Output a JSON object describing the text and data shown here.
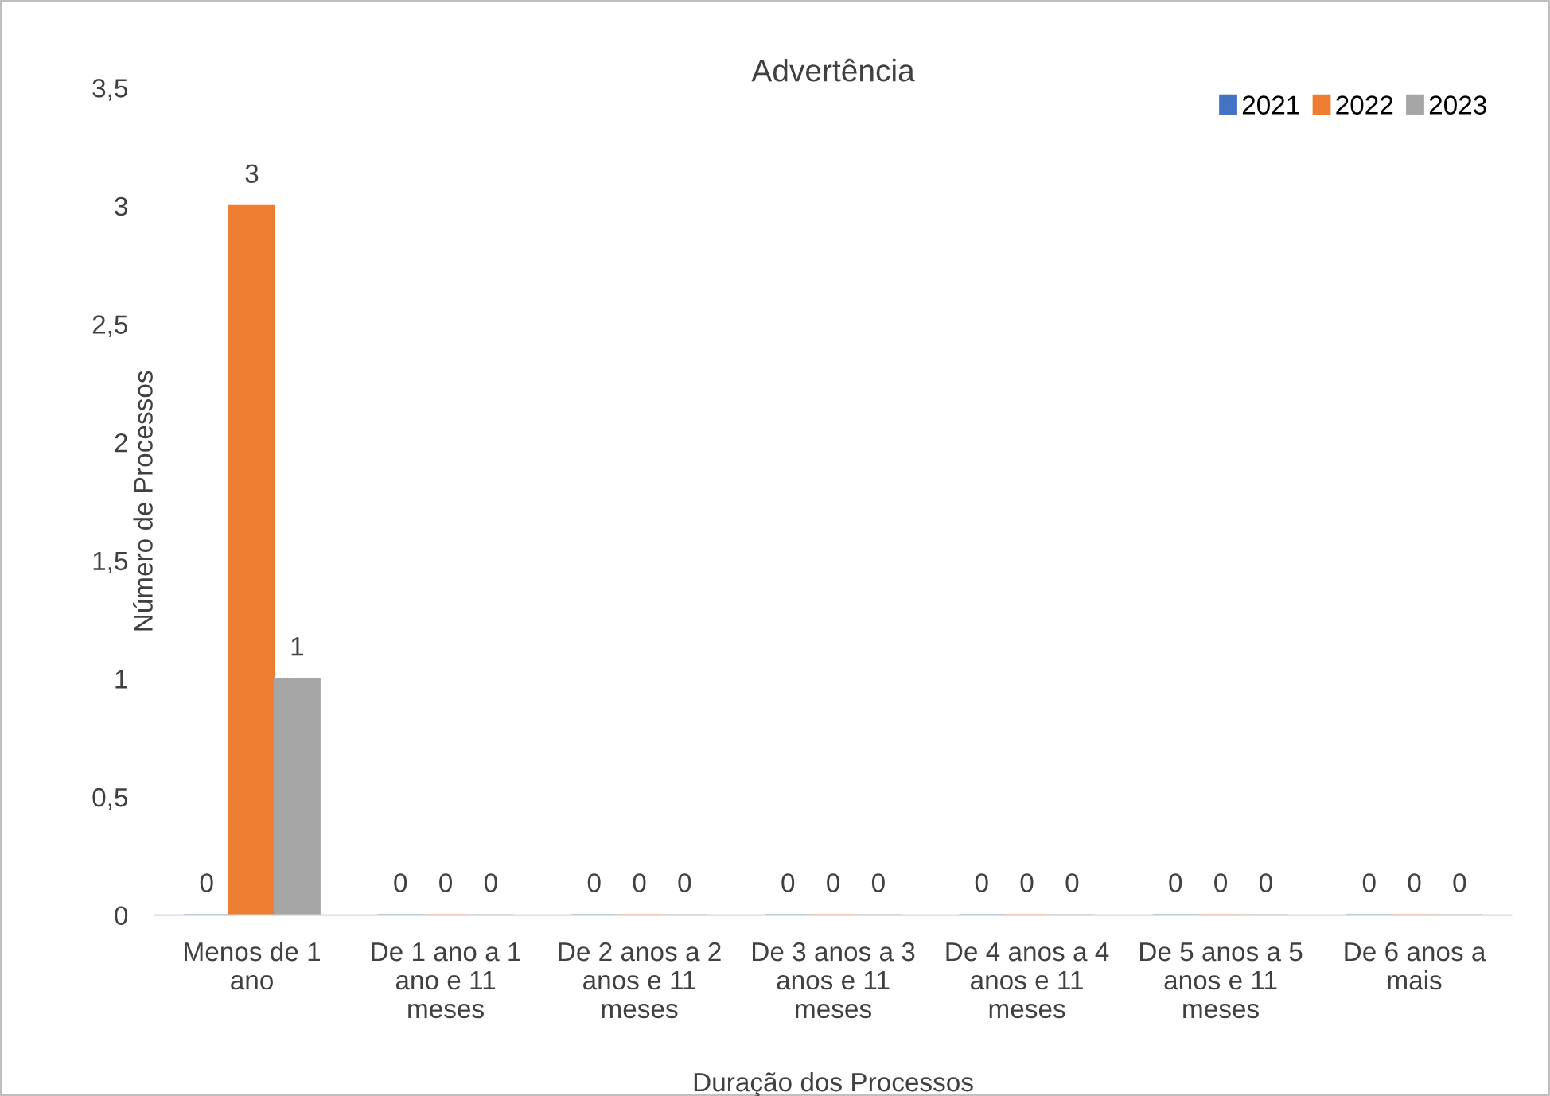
{
  "chart_data": {
    "type": "bar",
    "title": "Advertência",
    "xlabel": "Duração dos Processos",
    "ylabel": "Número de Processos",
    "categories": [
      "Menos de 1 ano",
      "De 1 ano a 1 ano e 11 meses",
      "De 2 anos a 2 anos e 11 meses",
      "De 3 anos a 3 anos e 11 meses",
      "De 4 anos a 4 anos e 11 meses",
      "De 5 anos a 5 anos e 11 meses",
      "De 6 anos a mais"
    ],
    "series": [
      {
        "name": "2021",
        "color": "#4472c4",
        "values": [
          0,
          0,
          0,
          0,
          0,
          0,
          0
        ]
      },
      {
        "name": "2022",
        "color": "#ed7d31",
        "values": [
          3,
          0,
          0,
          0,
          0,
          0,
          0
        ]
      },
      {
        "name": "2023",
        "color": "#a5a5a5",
        "values": [
          1,
          0,
          0,
          0,
          0,
          0,
          0
        ]
      }
    ],
    "ylim": [
      0,
      3.5
    ],
    "yticks": [
      {
        "value": 0,
        "label": "0"
      },
      {
        "value": 0.5,
        "label": "0,5"
      },
      {
        "value": 1,
        "label": "1"
      },
      {
        "value": 1.5,
        "label": "1,5"
      },
      {
        "value": 2,
        "label": "2"
      },
      {
        "value": 2.5,
        "label": "2,5"
      },
      {
        "value": 3,
        "label": "3"
      },
      {
        "value": 3.5,
        "label": "3,5"
      }
    ],
    "data_labels": true,
    "legend": "top right",
    "grid": false
  }
}
